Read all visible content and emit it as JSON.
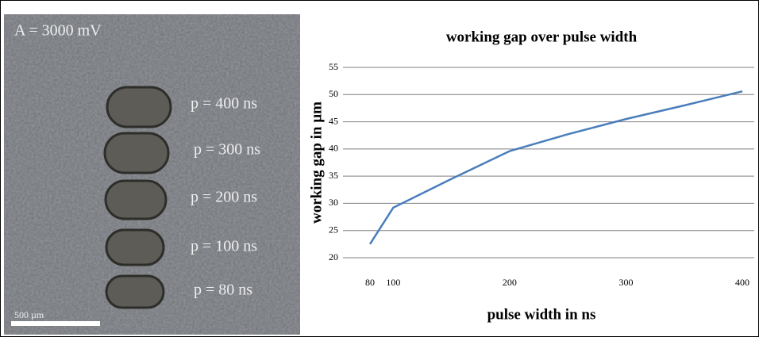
{
  "micrograph": {
    "amplitude": "A = 3000 mV",
    "labels": [
      "p = 400 ns",
      "p = 300 ns",
      "p = 200 ns",
      "p = 100 ns",
      "p = 80 ns"
    ],
    "scale_bar": "500 µm"
  },
  "chart_data": {
    "type": "line",
    "title": "working gap over pulse width",
    "x_label": "pulse width in ns",
    "y_label": "working gap in µm",
    "x": [
      80,
      100,
      150,
      200,
      250,
      300,
      350,
      400
    ],
    "values": [
      22.5,
      29.2,
      34.5,
      39.6,
      42.7,
      45.5,
      48,
      50.6
    ],
    "color": "#4a7ebb",
    "xlim": [
      80,
      400
    ],
    "xticks": [
      80,
      100,
      200,
      300,
      400
    ],
    "ylim": [
      20,
      55
    ],
    "yticks": [
      20,
      25,
      30,
      35,
      40,
      45,
      50,
      55
    ],
    "grid": true
  }
}
